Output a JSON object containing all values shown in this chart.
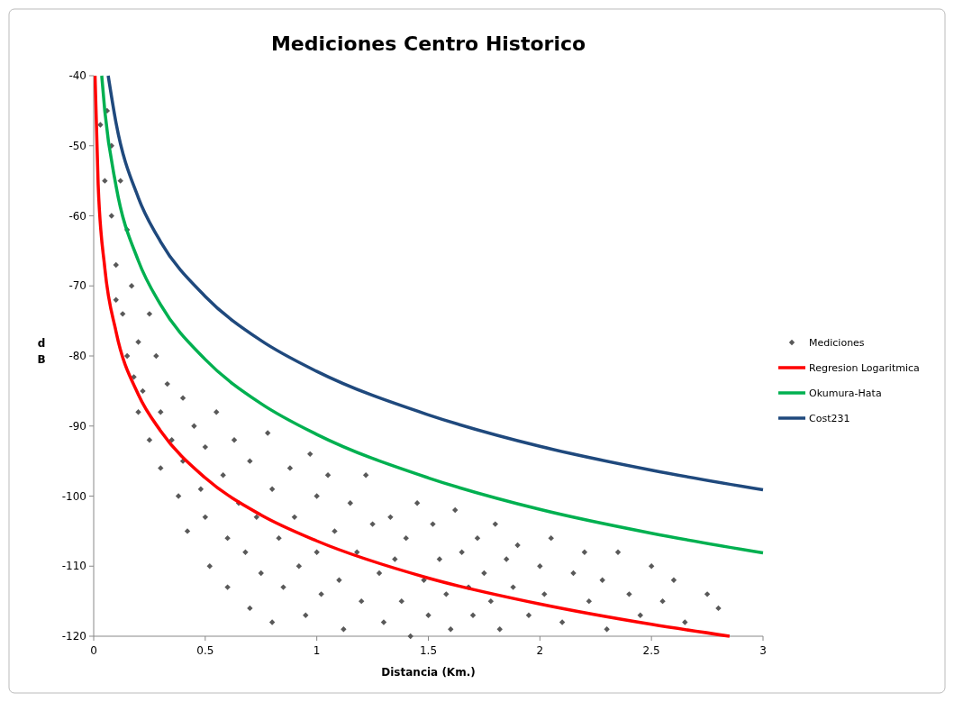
{
  "chart_data": {
    "type": "scatter",
    "title": "Mediciones Centro Historico",
    "xlabel": "Distancia (Km.)",
    "ylabel": "dB",
    "xlim": [
      0,
      3
    ],
    "xticks": [
      0,
      0.5,
      1,
      1.5,
      2,
      2.5,
      3
    ],
    "ylim": [
      -120,
      -40
    ],
    "yticks": [
      -120,
      -110,
      -100,
      -90,
      -80,
      -70,
      -60,
      -50,
      -40
    ],
    "grid": false,
    "legend": "right",
    "series": [
      {
        "name": "Mediciones",
        "marker": "diamond",
        "color": "#595959",
        "x": [
          0.03,
          0.05,
          0.06,
          0.08,
          0.08,
          0.1,
          0.1,
          0.12,
          0.13,
          0.15,
          0.15,
          0.17,
          0.18,
          0.2,
          0.2,
          0.22,
          0.25,
          0.25,
          0.28,
          0.3,
          0.3,
          0.33,
          0.35,
          0.38,
          0.4,
          0.4,
          0.42,
          0.45,
          0.48,
          0.5,
          0.5,
          0.52,
          0.55,
          0.58,
          0.6,
          0.6,
          0.63,
          0.65,
          0.68,
          0.7,
          0.7,
          0.73,
          0.75,
          0.78,
          0.8,
          0.8,
          0.83,
          0.85,
          0.88,
          0.9,
          0.92,
          0.95,
          0.97,
          1.0,
          1.0,
          1.02,
          1.05,
          1.08,
          1.1,
          1.12,
          1.15,
          1.18,
          1.2,
          1.22,
          1.25,
          1.28,
          1.3,
          1.33,
          1.35,
          1.38,
          1.4,
          1.42,
          1.45,
          1.48,
          1.5,
          1.52,
          1.55,
          1.58,
          1.6,
          1.62,
          1.65,
          1.68,
          1.7,
          1.72,
          1.75,
          1.78,
          1.8,
          1.82,
          1.85,
          1.88,
          1.9,
          1.95,
          2.0,
          2.02,
          2.05,
          2.1,
          2.15,
          2.2,
          2.22,
          2.28,
          2.3,
          2.35,
          2.4,
          2.45,
          2.5,
          2.55,
          2.6,
          2.65,
          2.75,
          2.8
        ],
        "values": [
          -47,
          -55,
          -45,
          -50,
          -60,
          -67,
          -72,
          -55,
          -74,
          -62,
          -80,
          -70,
          -83,
          -78,
          -88,
          -85,
          -74,
          -92,
          -80,
          -88,
          -96,
          -84,
          -92,
          -100,
          -86,
          -95,
          -105,
          -90,
          -99,
          -103,
          -93,
          -110,
          -88,
          -97,
          -106,
          -113,
          -92,
          -101,
          -108,
          -95,
          -116,
          -103,
          -111,
          -91,
          -99,
          -118,
          -106,
          -113,
          -96,
          -103,
          -110,
          -117,
          -94,
          -100,
          -108,
          -114,
          -97,
          -105,
          -112,
          -119,
          -101,
          -108,
          -115,
          -97,
          -104,
          -111,
          -118,
          -103,
          -109,
          -115,
          -106,
          -120,
          -101,
          -112,
          -117,
          -104,
          -109,
          -114,
          -119,
          -102,
          -108,
          -113,
          -117,
          -106,
          -111,
          -115,
          -104,
          -119,
          -109,
          -113,
          -107,
          -117,
          -110,
          -114,
          -106,
          -118,
          -111,
          -108,
          -115,
          -112,
          -119,
          -108,
          -114,
          -117,
          -110,
          -115,
          -112,
          -118,
          -114,
          -116
        ]
      },
      {
        "name": "Regresion Logaritmica",
        "type": "line",
        "color": "#ff0000",
        "x": [
          0.006,
          0.02,
          0.05,
          0.1,
          0.2,
          0.3,
          0.5,
          0.75,
          1,
          1.5,
          2,
          2.5,
          2.85
        ],
        "values": [
          -40,
          -55.5,
          -67.5,
          -76.5,
          -85.5,
          -90.7,
          -97.4,
          -102.7,
          -106.4,
          -111.7,
          -115.4,
          -118.3,
          -120
        ]
      },
      {
        "name": "Okumura-Hata",
        "type": "line",
        "color": "#00b050",
        "x": [
          0.036,
          0.05,
          0.1,
          0.2,
          0.3,
          0.5,
          0.75,
          1,
          1.5,
          2,
          2.5,
          3
        ],
        "values": [
          -40,
          -45.1,
          -55.7,
          -66.4,
          -72.7,
          -80.5,
          -86.8,
          -91.2,
          -97.4,
          -101.9,
          -105.3,
          -108.1
        ]
      },
      {
        "name": "Cost231",
        "type": "line",
        "color": "#1f497d",
        "x": [
          0.065,
          0.1,
          0.2,
          0.3,
          0.5,
          0.75,
          1,
          1.5,
          2,
          2.5,
          3
        ],
        "values": [
          -40,
          -46.7,
          -57.4,
          -63.7,
          -71.5,
          -77.8,
          -82.2,
          -88.4,
          -92.9,
          -96.3,
          -99.1
        ]
      }
    ]
  }
}
